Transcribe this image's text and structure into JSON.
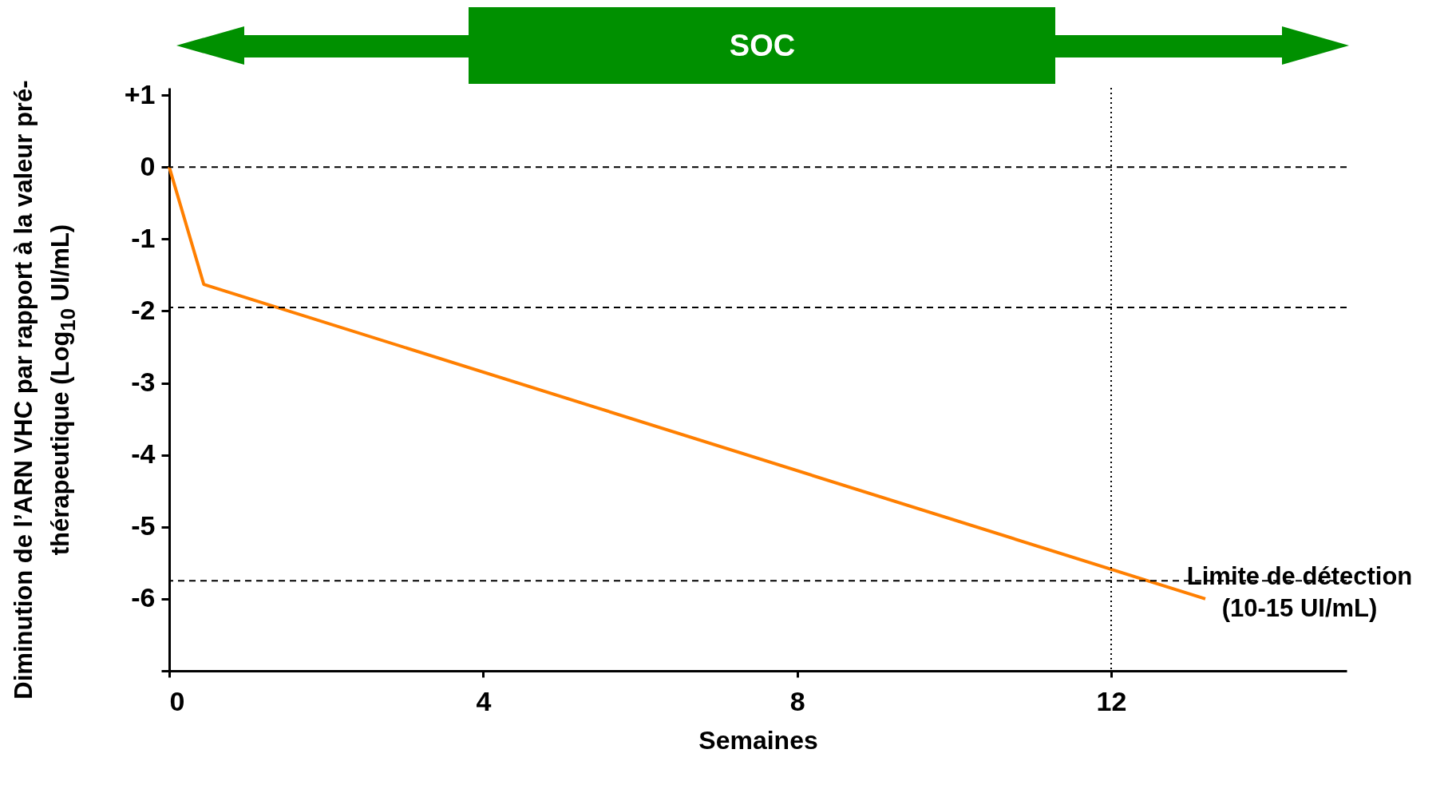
{
  "chart_data": {
    "type": "line",
    "xlabel": "Semaines",
    "ylabel": "Diminution de l’ARN VHC par rapport à la valeur pré-thérapeutique (Log$_{10}$ UI/mL)",
    "annotations": [
      "SOC"
    ],
    "x": [
      0,
      0.44,
      13.2
    ],
    "series": [
      {
        "color": "#ff7f00",
        "values": [
          0,
          -1.63,
          -6.0
        ]
      }
    ],
    "xlim": [
      0,
      15
    ],
    "xticks": [
      0,
      4,
      8,
      12
    ],
    "ylim": [
      -7,
      1.1
    ],
    "yticks": [
      {
        "value": 1,
        "label": "+1"
      },
      0,
      -1,
      -2,
      -3,
      -4,
      -5,
      -6,
      {
        "value": -7,
        "label": null
      }
    ],
    "ref_lines": [
      {
        "axis": "y",
        "value": 0,
        "line_style": "dashed"
      },
      {
        "axis": "y",
        "value": -1.95,
        "line_style": "dashed"
      },
      {
        "axis": "y",
        "value": -5.75,
        "line_style": "dashed",
        "label": "Limite de détection\n(10-15 UI/mL)"
      },
      {
        "axis": "x",
        "value": 12,
        "line_style": "dotted"
      }
    ],
    "grid": false,
    "marker": "none",
    "line_style": "solid"
  }
}
